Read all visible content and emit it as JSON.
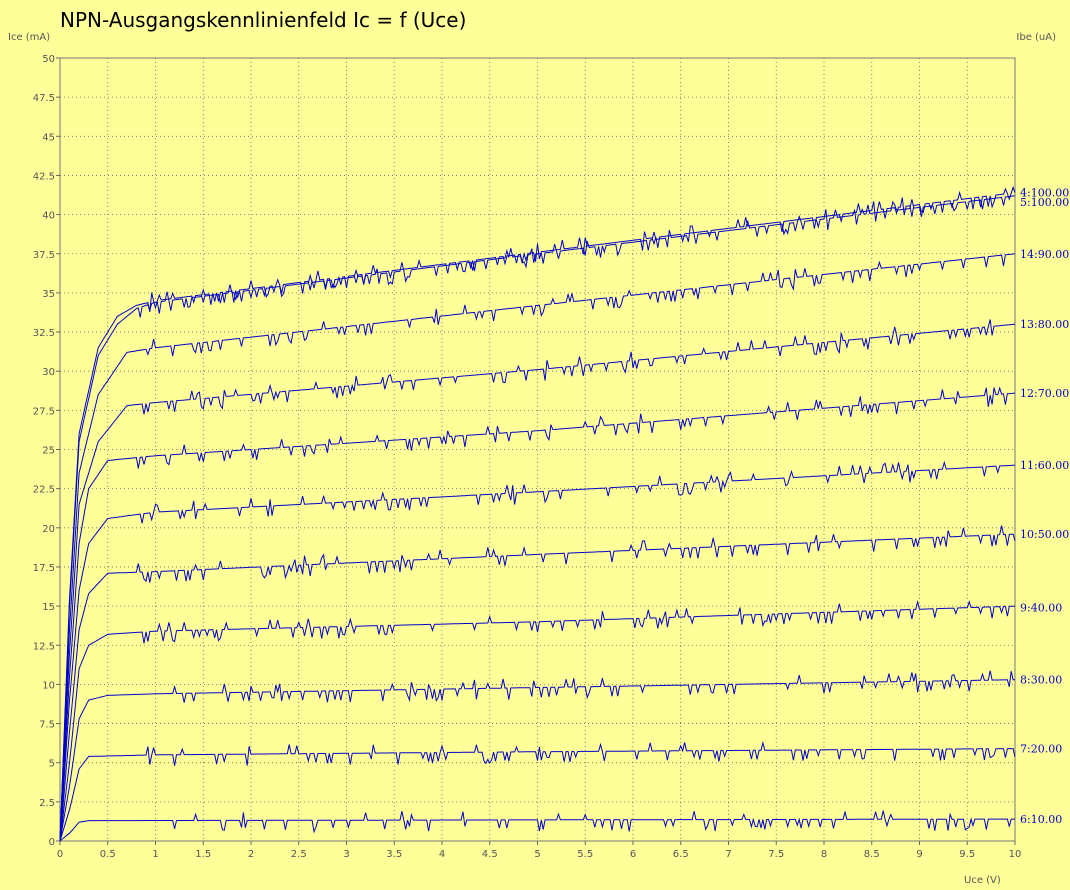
{
  "chart_data": {
    "type": "line",
    "title": "NPN-Ausgangskennlinienfeld Ic = f (Uce)",
    "ylabel": "Ice (mA)",
    "ylabel_right": "Ibe (uA)",
    "xlabel": "Uce (V)",
    "xlim": [
      0,
      10
    ],
    "ylim": [
      0,
      50
    ],
    "x_ticks": [
      "0",
      "0.5",
      "1",
      "1.5",
      "2",
      "2.5",
      "3",
      "3.5",
      "4",
      "4.5",
      "5",
      "5.5",
      "6",
      "6.5",
      "7",
      "7.5",
      "8",
      "8.5",
      "9",
      "9.5",
      "10"
    ],
    "y_ticks": [
      "0",
      "2.5",
      "5",
      "7.5",
      "10",
      "12.5",
      "15",
      "17.5",
      "20",
      "22.5",
      "25",
      "27.5",
      "30",
      "32.5",
      "35",
      "37.5",
      "40",
      "42.5",
      "45",
      "47.5",
      "50"
    ],
    "grid": true,
    "line_color": "#0000cc",
    "background": "#ffff99",
    "series": [
      {
        "name": "6:10.00",
        "points": [
          [
            0,
            0
          ],
          [
            0.1,
            0.5
          ],
          [
            0.2,
            1.2
          ],
          [
            0.3,
            1.3
          ],
          [
            10,
            1.4
          ]
        ]
      },
      {
        "name": "7:20.00",
        "points": [
          [
            0,
            0
          ],
          [
            0.1,
            2.0
          ],
          [
            0.2,
            4.6
          ],
          [
            0.3,
            5.4
          ],
          [
            1,
            5.5
          ],
          [
            5,
            5.7
          ],
          [
            10,
            5.9
          ]
        ]
      },
      {
        "name": "8:30.00",
        "points": [
          [
            0,
            0
          ],
          [
            0.1,
            3.5
          ],
          [
            0.2,
            7.8
          ],
          [
            0.3,
            9.0
          ],
          [
            0.5,
            9.3
          ],
          [
            1,
            9.4
          ],
          [
            5,
            9.8
          ],
          [
            10,
            10.3
          ]
        ]
      },
      {
        "name": "9:40.00",
        "points": [
          [
            0,
            0
          ],
          [
            0.1,
            5.0
          ],
          [
            0.2,
            11.0
          ],
          [
            0.3,
            12.5
          ],
          [
            0.5,
            13.2
          ],
          [
            1,
            13.4
          ],
          [
            5,
            14.0
          ],
          [
            10,
            15.0
          ]
        ]
      },
      {
        "name": "10:50.00",
        "points": [
          [
            0,
            0
          ],
          [
            0.1,
            7.0
          ],
          [
            0.2,
            13.5
          ],
          [
            0.3,
            15.8
          ],
          [
            0.5,
            17.1
          ],
          [
            1,
            17.2
          ],
          [
            5,
            18.3
          ],
          [
            10,
            19.6
          ]
        ]
      },
      {
        "name": "11:60.00",
        "points": [
          [
            0,
            0
          ],
          [
            0.1,
            9.0
          ],
          [
            0.2,
            16.0
          ],
          [
            0.3,
            19.0
          ],
          [
            0.5,
            20.6
          ],
          [
            1,
            21.0
          ],
          [
            5,
            22.3
          ],
          [
            10,
            24.0
          ]
        ]
      },
      {
        "name": "12:70.00",
        "points": [
          [
            0,
            0
          ],
          [
            0.1,
            10.5
          ],
          [
            0.2,
            19.0
          ],
          [
            0.3,
            22.5
          ],
          [
            0.5,
            24.3
          ],
          [
            1,
            24.6
          ],
          [
            5,
            26.2
          ],
          [
            10,
            28.6
          ]
        ]
      },
      {
        "name": "13:80.00",
        "points": [
          [
            0,
            0
          ],
          [
            0.1,
            12.0
          ],
          [
            0.2,
            21.5
          ],
          [
            0.4,
            25.5
          ],
          [
            0.7,
            27.8
          ],
          [
            1,
            28.0
          ],
          [
            5,
            30.1
          ],
          [
            10,
            33.0
          ]
        ]
      },
      {
        "name": "14:90.00",
        "points": [
          [
            0,
            0
          ],
          [
            0.1,
            13.5
          ],
          [
            0.2,
            23.5
          ],
          [
            0.4,
            28.5
          ],
          [
            0.7,
            31.2
          ],
          [
            1,
            31.5
          ],
          [
            5,
            34.2
          ],
          [
            10,
            37.5
          ]
        ]
      },
      {
        "name": "5:100.00",
        "points": [
          [
            0,
            0
          ],
          [
            0.1,
            15.0
          ],
          [
            0.2,
            25.5
          ],
          [
            0.4,
            31.0
          ],
          [
            0.6,
            33.0
          ],
          [
            0.8,
            34.0
          ],
          [
            1,
            34.4
          ],
          [
            5,
            37.5
          ],
          [
            10,
            41.2
          ]
        ]
      },
      {
        "name": "4:100.00",
        "points": [
          [
            0,
            0
          ],
          [
            0.1,
            15.5
          ],
          [
            0.2,
            26.0
          ],
          [
            0.4,
            31.5
          ],
          [
            0.6,
            33.5
          ],
          [
            0.8,
            34.2
          ],
          [
            1,
            34.5
          ],
          [
            5,
            37.6
          ],
          [
            10,
            41.4
          ]
        ]
      }
    ],
    "curve_labels": [
      {
        "text": "4:100.00",
        "y": 41.4
      },
      {
        "text": "5:100.00",
        "y": 40.8
      },
      {
        "text": "14:90.00",
        "y": 37.5
      },
      {
        "text": "13:80.00",
        "y": 33.0
      },
      {
        "text": "12:70.00",
        "y": 28.6
      },
      {
        "text": "11:60.00",
        "y": 24.0
      },
      {
        "text": "10:50.00",
        "y": 19.6
      },
      {
        "text": "9:40.00",
        "y": 14.9
      },
      {
        "text": "8:30.00",
        "y": 10.3
      },
      {
        "text": "7:20.00",
        "y": 5.9
      },
      {
        "text": "6:10.00",
        "y": 1.4
      }
    ]
  }
}
